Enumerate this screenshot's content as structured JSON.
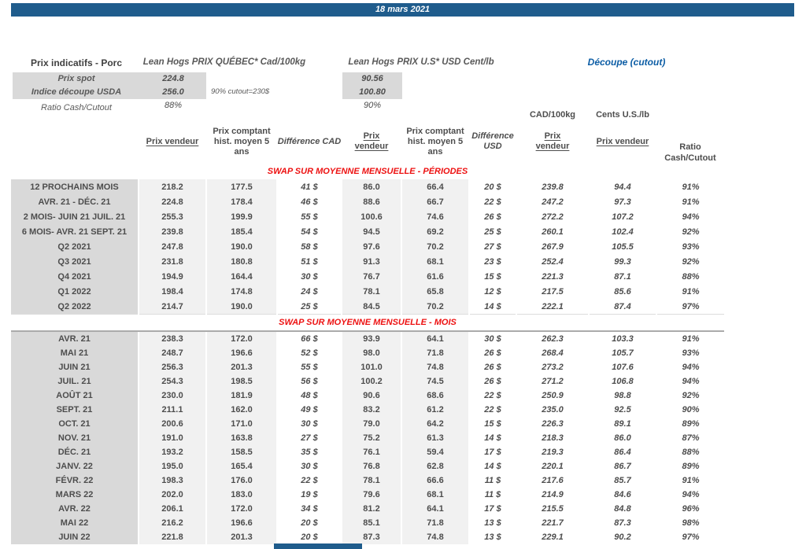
{
  "banner": {
    "date": "18 mars 2021"
  },
  "header": {
    "title": "Prix indicatifs - Porc",
    "quebec_title": "Lean Hogs PRIX QUÉBEC* Cad/100kg",
    "us_title": "Lean Hogs PRIX U.S* USD Cent/lb",
    "cutout_title": "Découpe (cutout)",
    "spot": {
      "spot_label": "Prix spot",
      "spot_cad": "224.8",
      "spot_usd": "90.56",
      "usda_label": "Indice découpe USDA",
      "usda_cad": "256.0",
      "usda_usd": "100.80",
      "cutout_note": "90% cutout=230$",
      "ratio_label": "Ratio Cash/Cutout",
      "ratio_cad": "88%",
      "ratio_usd": "90%"
    }
  },
  "columns": {
    "cad_unit": "CAD/100kg",
    "us_unit": "Cents U.S./lb",
    "prix_vendeur": "Prix vendeur",
    "prix_comptant": "Prix comptant hist. moyen 5 ans",
    "diff_cad": "Différence CAD",
    "diff_usd": "Différence USD",
    "ratio": "Ratio Cash/Cutout"
  },
  "sections": [
    {
      "title": "SWAP SUR MOYENNE MENSUELLE - PÉRIODES",
      "rows": [
        {
          "label": "12 PROCHAINS MOIS",
          "cells": [
            "218.2",
            "177.5",
            "41 $",
            "86.0",
            "66.4",
            "20 $",
            "239.8",
            "94.4",
            "91%"
          ]
        },
        {
          "label": "AVR. 21 -  DÉC. 21",
          "cells": [
            "224.8",
            "178.4",
            "46 $",
            "88.6",
            "66.7",
            "22 $",
            "247.2",
            "97.3",
            "91%"
          ]
        },
        {
          "label": "2 MOIS- JUIN 21 JUIL. 21",
          "cells": [
            "255.3",
            "199.9",
            "55 $",
            "100.6",
            "74.6",
            "26 $",
            "272.2",
            "107.2",
            "94%"
          ]
        },
        {
          "label": "6 MOIS- AVR. 21 SEPT. 21",
          "cells": [
            "239.8",
            "185.4",
            "54 $",
            "94.5",
            "69.2",
            "25 $",
            "260.1",
            "102.4",
            "92%"
          ]
        },
        {
          "label": "Q2 2021",
          "cells": [
            "247.8",
            "190.0",
            "58 $",
            "97.6",
            "70.2",
            "27 $",
            "267.9",
            "105.5",
            "93%"
          ]
        },
        {
          "label": "Q3 2021",
          "cells": [
            "231.8",
            "180.8",
            "51 $",
            "91.3",
            "68.1",
            "23 $",
            "252.4",
            "99.3",
            "92%"
          ]
        },
        {
          "label": "Q4 2021",
          "cells": [
            "194.9",
            "164.4",
            "30 $",
            "76.7",
            "61.6",
            "15 $",
            "221.3",
            "87.1",
            "88%"
          ]
        },
        {
          "label": "Q1 2022",
          "cells": [
            "198.4",
            "174.8",
            "24 $",
            "78.1",
            "65.8",
            "12 $",
            "217.5",
            "85.6",
            "91%"
          ]
        },
        {
          "label": "Q2 2022",
          "cells": [
            "214.7",
            "190.0",
            "25 $",
            "84.5",
            "70.2",
            "14 $",
            "222.1",
            "87.4",
            "97%"
          ]
        }
      ]
    },
    {
      "title": "SWAP SUR MOYENNE MENSUELLE - MOIS",
      "rows": [
        {
          "label": "AVR. 21",
          "cells": [
            "238.3",
            "172.0",
            "66 $",
            "93.9",
            "64.1",
            "30 $",
            "262.3",
            "103.3",
            "91%"
          ]
        },
        {
          "label": "MAI 21",
          "cells": [
            "248.7",
            "196.6",
            "52 $",
            "98.0",
            "71.8",
            "26 $",
            "268.4",
            "105.7",
            "93%"
          ]
        },
        {
          "label": "JUIN 21",
          "cells": [
            "256.3",
            "201.3",
            "55 $",
            "101.0",
            "74.8",
            "26 $",
            "273.2",
            "107.6",
            "94%"
          ]
        },
        {
          "label": "JUIL. 21",
          "cells": [
            "254.3",
            "198.5",
            "56 $",
            "100.2",
            "74.5",
            "26 $",
            "271.2",
            "106.8",
            "94%"
          ]
        },
        {
          "label": "AOÛT 21",
          "cells": [
            "230.0",
            "181.9",
            "48 $",
            "90.6",
            "68.6",
            "22 $",
            "250.9",
            "98.8",
            "92%"
          ]
        },
        {
          "label": "SEPT. 21",
          "cells": [
            "211.1",
            "162.0",
            "49 $",
            "83.2",
            "61.2",
            "22 $",
            "235.0",
            "92.5",
            "90%"
          ]
        },
        {
          "label": "OCT. 21",
          "cells": [
            "200.6",
            "171.0",
            "30 $",
            "79.0",
            "64.2",
            "15 $",
            "226.3",
            "89.1",
            "89%"
          ]
        },
        {
          "label": "NOV. 21",
          "cells": [
            "191.0",
            "163.8",
            "27 $",
            "75.2",
            "61.3",
            "14 $",
            "218.3",
            "86.0",
            "87%"
          ]
        },
        {
          "label": "DÉC. 21",
          "cells": [
            "193.2",
            "158.5",
            "35 $",
            "76.1",
            "59.4",
            "17 $",
            "219.3",
            "86.4",
            "88%"
          ]
        },
        {
          "label": "JANV. 22",
          "cells": [
            "195.0",
            "165.4",
            "30 $",
            "76.8",
            "62.8",
            "14 $",
            "220.1",
            "86.7",
            "89%"
          ]
        },
        {
          "label": "FÉVR. 22",
          "cells": [
            "198.3",
            "176.0",
            "22 $",
            "78.1",
            "66.6",
            "11 $",
            "217.6",
            "85.7",
            "91%"
          ]
        },
        {
          "label": "MARS 22",
          "cells": [
            "202.0",
            "183.0",
            "19 $",
            "79.6",
            "68.1",
            "11 $",
            "214.9",
            "84.6",
            "94%"
          ]
        },
        {
          "label": "AVR. 22",
          "cells": [
            "206.1",
            "172.0",
            "34 $",
            "81.2",
            "64.1",
            "17 $",
            "215.5",
            "84.8",
            "96%"
          ]
        },
        {
          "label": "MAI 22",
          "cells": [
            "216.2",
            "196.6",
            "20 $",
            "85.1",
            "71.8",
            "13 $",
            "221.7",
            "87.3",
            "98%"
          ]
        },
        {
          "label": "JUIN 22",
          "cells": [
            "221.8",
            "201.3",
            "20 $",
            "87.3",
            "74.8",
            "13 $",
            "229.1",
            "90.2",
            "97%"
          ]
        }
      ]
    }
  ],
  "colors": {
    "banner_blue": "#1F5C8C",
    "cutout_blue": "#0C5DA5",
    "value_blue": "#1E5C9B",
    "diff_green": "#00A64F",
    "section_red": "#ED1111",
    "label_gray_bg": "#D9D9D9",
    "band_gray_bg": "#F1F1F1"
  }
}
